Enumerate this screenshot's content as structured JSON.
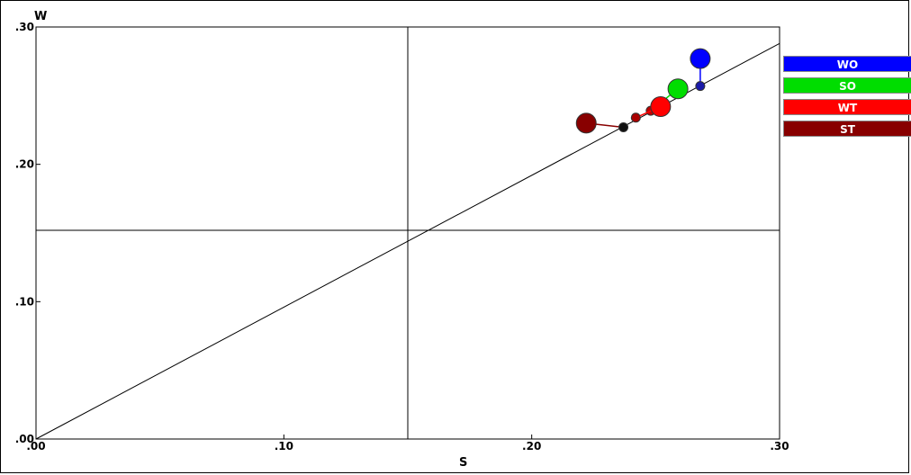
{
  "chart_data": {
    "type": "scatter",
    "xlabel": "S",
    "ylabel": "W",
    "xlim": [
      0,
      30
    ],
    "ylim": [
      0,
      30
    ],
    "x_ticks": [
      ".00",
      ".10",
      ".20",
      ".30"
    ],
    "y_ticks": [
      ".00",
      ".10",
      ".20",
      ".30"
    ],
    "legend_position": "right",
    "reference_line": {
      "from": [
        0,
        0
      ],
      "to": [
        30,
        28.8
      ]
    },
    "crosshair": {
      "x": 15.0,
      "y": 15.2
    },
    "series": [
      {
        "name": "WO",
        "color": "#0000ff",
        "point": {
          "x": 26.8,
          "y": 27.7
        },
        "paired_point": {
          "x": 26.8,
          "y": 25.7
        }
      },
      {
        "name": "SO",
        "color": "#00dd00",
        "point": {
          "x": 25.9,
          "y": 25.5
        },
        "paired_point": {
          "x": 24.8,
          "y": 23.9
        }
      },
      {
        "name": "WT",
        "color": "#ff0000",
        "point": {
          "x": 25.2,
          "y": 24.2
        },
        "paired_point": {
          "x": 24.2,
          "y": 23.4
        }
      },
      {
        "name": "ST",
        "color": "#880000",
        "point": {
          "x": 22.2,
          "y": 23.0
        },
        "paired_point": {
          "x": 23.7,
          "y": 22.7
        }
      }
    ]
  }
}
